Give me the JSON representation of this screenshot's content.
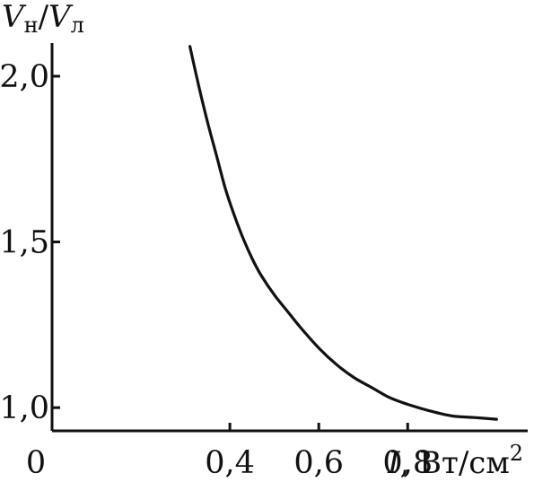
{
  "chart_data": {
    "type": "line",
    "ylabel_parts": {
      "v1": "V",
      "sub1": "н",
      "slash": "/",
      "v2": "V",
      "sub2": "л"
    },
    "xlabel_parts": {
      "var": "I",
      "unit": ", Вт/см",
      "sup": "2"
    },
    "xlim": [
      0.0,
      1.07
    ],
    "ylim": [
      0.93,
      2.1
    ],
    "x_ticks": [
      {
        "value": 0.0,
        "label": "0"
      },
      {
        "value": 0.4,
        "label": "0,4"
      },
      {
        "value": 0.6,
        "label": "0,6"
      },
      {
        "value": 0.8,
        "label": "0,8"
      }
    ],
    "y_ticks": [
      {
        "value": 2.0,
        "label": "2,0"
      },
      {
        "value": 1.5,
        "label": "1,5"
      },
      {
        "value": 1.0,
        "label": "1,0"
      }
    ],
    "series": [
      {
        "x": [
          0.31,
          0.33,
          0.35,
          0.37,
          0.39,
          0.41,
          0.43,
          0.45,
          0.47,
          0.5,
          0.53,
          0.56,
          0.6,
          0.64,
          0.68,
          0.72,
          0.76,
          0.8,
          0.85,
          0.9,
          0.95,
          1.0
        ],
        "y": [
          2.09,
          1.97,
          1.86,
          1.76,
          1.66,
          1.58,
          1.51,
          1.45,
          1.4,
          1.34,
          1.29,
          1.24,
          1.18,
          1.13,
          1.09,
          1.06,
          1.03,
          1.01,
          0.99,
          0.975,
          0.97,
          0.965
        ]
      }
    ],
    "grid": false
  }
}
